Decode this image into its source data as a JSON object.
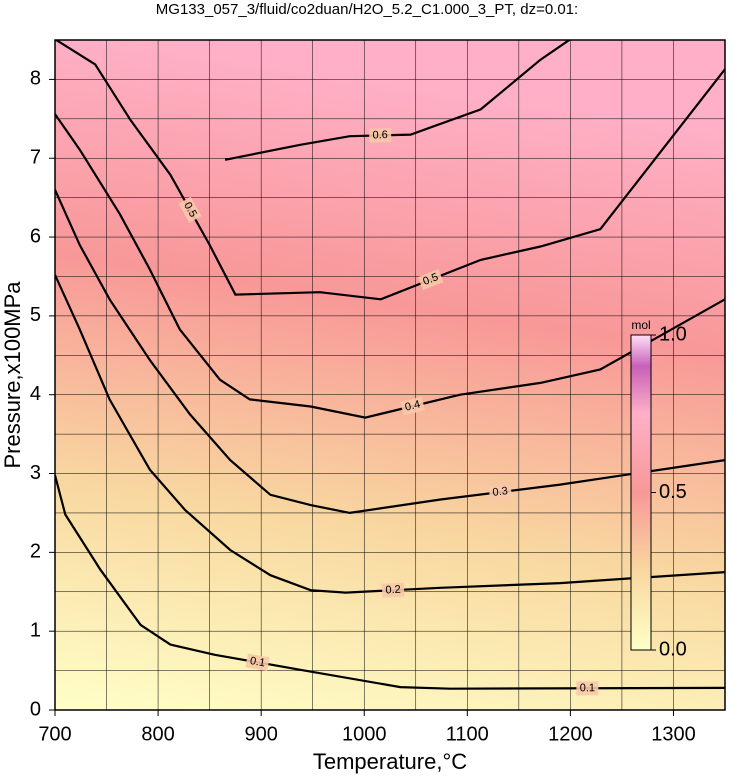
{
  "chart_data": {
    "type": "contour",
    "title": "MG133_057_3/fluid/co2duan/H2O_5.2_C1.000_3_PT, dz=0.01:",
    "x_label": "Temperature,°C",
    "y_label": "Pressure,x100MPa",
    "xlim": [
      700,
      1350
    ],
    "ylim": [
      0,
      8.5
    ],
    "xticks": [
      700,
      800,
      900,
      1000,
      1100,
      1200,
      1300
    ],
    "yticks": [
      0,
      1,
      2,
      3,
      4,
      5,
      6,
      7,
      8
    ],
    "xminorticks": [
      750,
      850,
      950,
      1050,
      1150,
      1250
    ],
    "yminorticks": [
      0.5,
      1.5,
      2.5,
      3.5,
      4.5,
      5.5,
      6.5,
      7.5
    ],
    "grid": true,
    "colormap": [
      [
        0,
        "#ffffc8"
      ],
      [
        0.25,
        "#f8d8a0"
      ],
      [
        0.5,
        "#f89898"
      ],
      [
        0.75,
        "#ffb0c8"
      ],
      [
        0.9,
        "#c860b8"
      ],
      [
        1,
        "#ffe0f8"
      ]
    ],
    "colorbar": {
      "label": "mol",
      "lim": [
        0,
        1
      ],
      "ticks": [
        {
          "value": 0,
          "label": "0.0"
        },
        {
          "value": 0.5,
          "label": "0.5"
        },
        {
          "value": 1,
          "label": "1.0"
        }
      ]
    },
    "contours": [
      {
        "level": 0.1,
        "x": [
          700,
          710,
          744,
          783,
          812,
          855,
          938,
          1035,
          1083,
          1350
        ],
        "y": [
          2.98,
          2.48,
          1.78,
          1.08,
          0.83,
          0.7,
          0.51,
          0.29,
          0.27,
          0.28
        ]
      },
      {
        "level": 0.2,
        "x": [
          700,
          724,
          753,
          792,
          826,
          870,
          909,
          948,
          982,
          1074,
          1190,
          1350
        ],
        "y": [
          5.52,
          4.83,
          3.94,
          3.05,
          2.54,
          2.03,
          1.71,
          1.52,
          1.49,
          1.55,
          1.61,
          1.75
        ]
      },
      {
        "level": 0.3,
        "x": [
          700,
          724,
          753,
          792,
          831,
          870,
          909,
          948,
          986,
          1074,
          1190,
          1350
        ],
        "y": [
          6.6,
          5.9,
          5.21,
          4.44,
          3.75,
          3.17,
          2.73,
          2.6,
          2.5,
          2.67,
          2.86,
          3.17
        ]
      },
      {
        "level": 0.4,
        "x": [
          700,
          724,
          763,
          792,
          821,
          860,
          889,
          948,
          1001,
          1093,
          1171,
          1229,
          1350
        ],
        "y": [
          7.56,
          7.11,
          6.29,
          5.59,
          4.83,
          4.19,
          3.94,
          3.85,
          3.71,
          4.0,
          4.15,
          4.32,
          5.21
        ]
      },
      {
        "level": 0.5,
        "x": [
          700,
          739,
          773,
          812,
          850,
          875,
          957,
          1016,
          1113,
          1171,
          1229,
          1350
        ],
        "y": [
          8.51,
          8.19,
          7.49,
          6.79,
          5.9,
          5.27,
          5.3,
          5.21,
          5.71,
          5.88,
          6.1,
          8.13
        ]
      },
      {
        "level": 0.6,
        "x": [
          865,
          938,
          986,
          1045,
          1113,
          1171,
          1200
        ],
        "y": [
          6.98,
          7.17,
          7.28,
          7.3,
          7.62,
          8.25,
          8.51
        ]
      }
    ]
  }
}
